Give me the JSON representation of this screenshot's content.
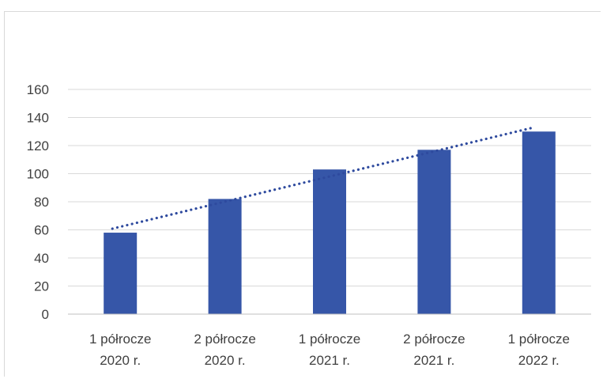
{
  "chart_data": {
    "type": "bar",
    "categories": [
      [
        "1 półrocze",
        "2020 r."
      ],
      [
        "2 półrocze",
        "2020 r."
      ],
      [
        "1 półrocze",
        "2021 r."
      ],
      [
        "2 półrocze",
        "2021 r."
      ],
      [
        "1 półrocze",
        "2022 r."
      ]
    ],
    "values": [
      58,
      82,
      103,
      117,
      130
    ],
    "ylim": [
      0,
      160
    ],
    "yticks": [
      0,
      20,
      40,
      60,
      80,
      100,
      120,
      140,
      160
    ],
    "grid": true,
    "trendline": {
      "type": "linear",
      "style": "dotted"
    },
    "colors": {
      "bar": "#3656a8",
      "trend": "#2e4a9e",
      "grid": "#d9d9d9",
      "axis": "#bfbfbf",
      "text": "#404040"
    }
  }
}
